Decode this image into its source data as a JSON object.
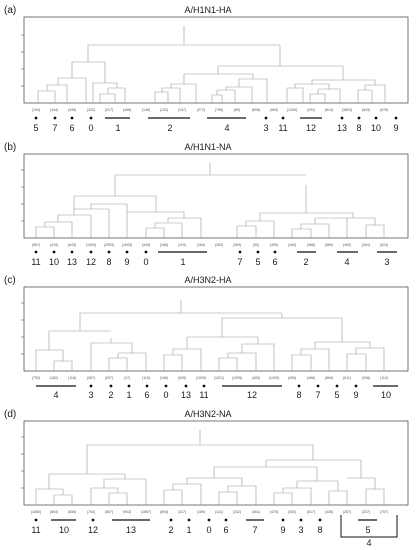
{
  "panels": [
    {
      "letter": "(a)",
      "title": "A/H1N1-HA",
      "leaves": [
        "(154)",
        "(444)",
        "(348)",
        "(322)",
        "(217)",
        "(468)",
        "(148)",
        "(132)",
        "(147)",
        "(272)",
        "(736)",
        "(89)",
        "(608)",
        "(964)",
        "(1269)",
        "(231)",
        "(614)",
        "(3603)",
        "(543)",
        "(676)"
      ],
      "clusters": [
        {
          "label": "5",
          "kind": "dot"
        },
        {
          "label": "7",
          "kind": "dot"
        },
        {
          "label": "6",
          "kind": "dot"
        },
        {
          "label": "0",
          "kind": "dot"
        },
        {
          "label": "1",
          "kind": "bar"
        },
        {
          "label": "2",
          "kind": "bar"
        },
        {
          "label": "4",
          "kind": "bar"
        },
        {
          "label": "3",
          "kind": "dot"
        },
        {
          "label": "11",
          "kind": "dot"
        },
        {
          "label": "12",
          "kind": "bar"
        },
        {
          "label": "13",
          "kind": "dot"
        },
        {
          "label": "8",
          "kind": "dot"
        },
        {
          "label": "10",
          "kind": "dot"
        },
        {
          "label": "9",
          "kind": "dot"
        }
      ]
    },
    {
      "letter": "(b)",
      "title": "A/H1N1-NA",
      "leaves": [
        "(907)",
        "(419)",
        "(643)",
        "(1509)",
        "(2093)",
        "(1000)",
        "(345)",
        "(166)",
        "(119)",
        "(184)",
        "(263)",
        "(369)",
        "(90)",
        "(459)",
        "(184)",
        "(368)",
        "(580)",
        "(460)",
        "(261)",
        "(524)"
      ],
      "clusters": [
        {
          "label": "11",
          "kind": "dot"
        },
        {
          "label": "10",
          "kind": "dot"
        },
        {
          "label": "13",
          "kind": "dot"
        },
        {
          "label": "12",
          "kind": "dot"
        },
        {
          "label": "8",
          "kind": "dot"
        },
        {
          "label": "9",
          "kind": "dot"
        },
        {
          "label": "0",
          "kind": "dot"
        },
        {
          "label": "1",
          "kind": "bar"
        },
        {
          "label": "7",
          "kind": "dot"
        },
        {
          "label": "5",
          "kind": "dot"
        },
        {
          "label": "6",
          "kind": "dot"
        },
        {
          "label": "2",
          "kind": "bar"
        },
        {
          "label": "4",
          "kind": "bar"
        },
        {
          "label": "3",
          "kind": "bar"
        }
      ]
    },
    {
      "letter": "(c)",
      "title": "A/H3N2-HA",
      "leaves": [
        "(792)",
        "(182)",
        "(116)",
        "(367)",
        "(257)",
        "(17)",
        "(115)",
        "(108)",
        "(539)",
        "(1009)",
        "(1021)",
        "(1005)",
        "(405)",
        "(1429)",
        "(453)",
        "(466)",
        "(864)",
        "(611)",
        "(536)",
        "(110)"
      ],
      "clusters": [
        {
          "label": "4",
          "kind": "bar"
        },
        {
          "label": "3",
          "kind": "dot"
        },
        {
          "label": "2",
          "kind": "dot"
        },
        {
          "label": "1",
          "kind": "dot"
        },
        {
          "label": "6",
          "kind": "dot"
        },
        {
          "label": "0",
          "kind": "dot"
        },
        {
          "label": "13",
          "kind": "dot"
        },
        {
          "label": "11",
          "kind": "dot"
        },
        {
          "label": "12",
          "kind": "bar"
        },
        {
          "label": "8",
          "kind": "dot"
        },
        {
          "label": "7",
          "kind": "dot"
        },
        {
          "label": "5",
          "kind": "dot"
        },
        {
          "label": "9",
          "kind": "dot"
        },
        {
          "label": "10",
          "kind": "bar"
        }
      ]
    },
    {
      "letter": "(d)",
      "title": "A/H3N2-NA",
      "leaves": [
        "(1860)",
        "(654)",
        "(836)",
        "(754)",
        "(807)",
        "(903)",
        "(1697)",
        "(894)",
        "(117)",
        "(189)",
        "(141)",
        "(232)",
        "(361)",
        "(475)",
        "(300)",
        "(517)",
        "(436)",
        "(287)",
        "(237)",
        "(797)"
      ],
      "clusters": [
        {
          "label": "11",
          "kind": "dot"
        },
        {
          "label": "10",
          "kind": "bar"
        },
        {
          "label": "12",
          "kind": "dot"
        },
        {
          "label": "13",
          "kind": "bar"
        },
        {
          "label": "2",
          "kind": "dot"
        },
        {
          "label": "1",
          "kind": "dot"
        },
        {
          "label": "0",
          "kind": "dot"
        },
        {
          "label": "6",
          "kind": "dot"
        },
        {
          "label": "7",
          "kind": "bar"
        },
        {
          "label": "9",
          "kind": "dot"
        },
        {
          "label": "3",
          "kind": "dot"
        },
        {
          "label": "8",
          "kind": "dot"
        },
        {
          "label": "5",
          "kind": "bar"
        },
        {
          "label": "4",
          "kind": "bracket"
        }
      ]
    }
  ]
}
